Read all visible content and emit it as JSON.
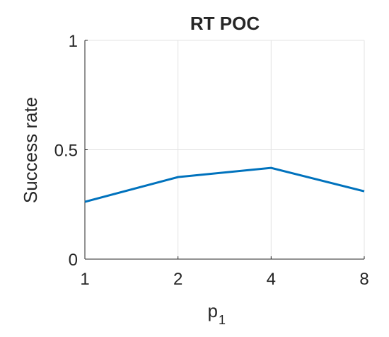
{
  "chart_data": {
    "type": "line",
    "title": "RT POC",
    "x": [
      1,
      2,
      4,
      8
    ],
    "xscale": "log",
    "series": [
      {
        "color": "#0072bd",
        "values": [
          0.262,
          0.375,
          0.417,
          0.31
        ]
      }
    ],
    "xlim": [
      1,
      8
    ],
    "xticks": [
      1,
      2,
      4,
      8
    ],
    "ylim": [
      0,
      1
    ],
    "yticks": [
      0,
      0.5,
      1
    ],
    "xlabel": "p",
    "xlabel_subscript": "1",
    "ylabel": "Success rate",
    "grid": true
  }
}
